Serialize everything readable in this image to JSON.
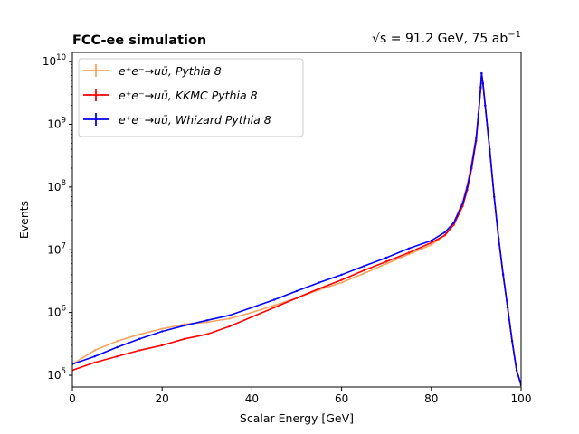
{
  "chart_data": {
    "type": "line",
    "title_left": "FCC-ee simulation",
    "title_right": "√s = 91.2 GeV, 75 ab",
    "title_right_sup": "−1",
    "xlabel": "Scalar Energy [GeV]",
    "ylabel": "Events",
    "xlim": [
      0,
      100
    ],
    "ylim": [
      65000,
      14000000000
    ],
    "yscale": "log",
    "x_ticks": [
      "0",
      "20",
      "40",
      "60",
      "80",
      "100"
    ],
    "y_ticks": [
      {
        "base": "10",
        "exp": "5"
      },
      {
        "base": "10",
        "exp": "6"
      },
      {
        "base": "10",
        "exp": "7"
      },
      {
        "base": "10",
        "exp": "8"
      },
      {
        "base": "10",
        "exp": "9"
      },
      {
        "base": "10",
        "exp": "10"
      }
    ],
    "grid": false,
    "legend_position": "top-left",
    "x": [
      0,
      5,
      10,
      15,
      20,
      25,
      30,
      35,
      40,
      45,
      50,
      55,
      60,
      65,
      70,
      75,
      80,
      83,
      85,
      87,
      88,
      89,
      90,
      90.5,
      91,
      91.2,
      91.5,
      92,
      93,
      94,
      95,
      96,
      97,
      98,
      99,
      100
    ],
    "series": [
      {
        "name": "e⁺e⁻→uū, Pythia 8",
        "color": "#f4a460",
        "values": [
          150000,
          250000,
          350000,
          450000,
          550000,
          650000,
          700000,
          800000,
          1000000,
          1300000,
          1700000,
          2300000,
          3000000,
          4200000,
          6000000,
          8500000,
          12000000,
          17000000,
          27000000,
          60000000,
          110000000,
          250000000,
          650000000,
          1500000000,
          4000000000,
          6500000000,
          4500000000,
          2000000000,
          400000000,
          70000000,
          15000000,
          4000000,
          1200000,
          350000,
          120000,
          70000
        ]
      },
      {
        "name": "e⁺e⁻→uū, KKMC Pythia 8",
        "color": "#ff0000",
        "values": [
          120000,
          160000,
          200000,
          250000,
          300000,
          380000,
          450000,
          600000,
          850000,
          1200000,
          1700000,
          2400000,
          3300000,
          4700000,
          6500000,
          9000000,
          13000000,
          17000000,
          25000000,
          50000000,
          90000000,
          200000000,
          550000000,
          1400000000,
          3800000000,
          6500000000,
          4500000000,
          2000000000,
          400000000,
          70000000,
          15000000,
          4000000,
          1200000,
          350000,
          120000,
          70000
        ]
      },
      {
        "name": "e⁺e⁻→uū, Whizard Pythia 8",
        "color": "#0000ff",
        "values": [
          150000,
          200000,
          280000,
          380000,
          500000,
          620000,
          750000,
          900000,
          1200000,
          1600000,
          2200000,
          3000000,
          4000000,
          5500000,
          7500000,
          10500000,
          14000000,
          19000000,
          27000000,
          55000000,
          100000000,
          220000000,
          600000000,
          1450000000,
          3900000000,
          6500000000,
          4500000000,
          2000000000,
          400000000,
          70000000,
          15000000,
          4000000,
          1200000,
          350000,
          120000,
          70000
        ]
      }
    ]
  }
}
